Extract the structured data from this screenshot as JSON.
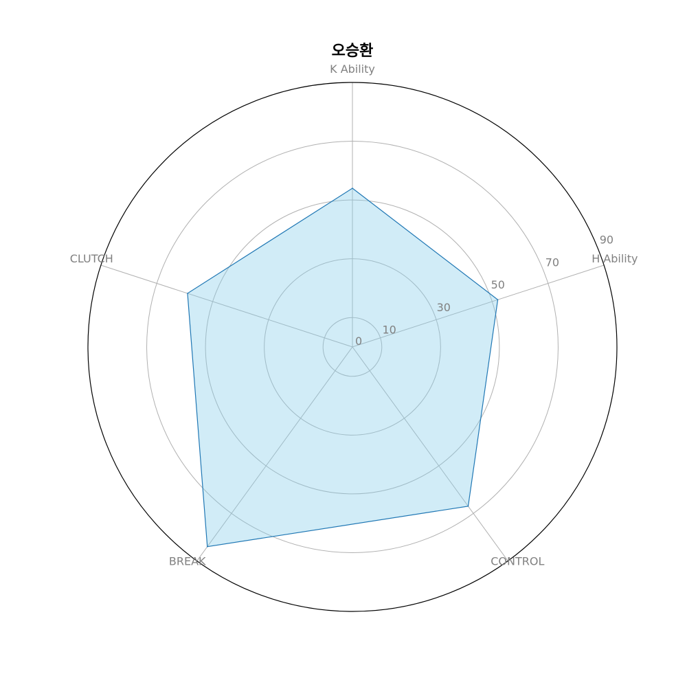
{
  "chart_data": {
    "type": "radar",
    "title": "오승환",
    "axes": [
      "K Ability",
      "H Ability",
      "CONTROL",
      "BREAK",
      "CLUTCH"
    ],
    "series": [
      {
        "values": [
          54,
          52,
          67,
          84,
          59
        ]
      }
    ],
    "rlim": [
      0,
      90
    ],
    "rticks": [
      0,
      10,
      30,
      50,
      70,
      90
    ],
    "grid": true,
    "colors": {
      "line": "#1f77b4",
      "fill": "#87ceeb"
    }
  }
}
